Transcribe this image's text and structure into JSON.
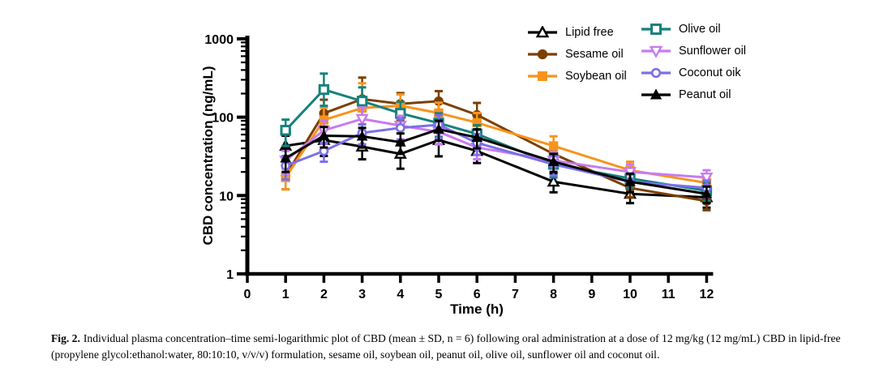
{
  "caption": {
    "label": "Fig. 2.",
    "text": "Individual plasma concentration–time semi-logarithmic plot of CBD (mean ± SD, n = 6) following oral administration at a dose of 12 mg/kg (12 mg/mL) CBD in lipid-free (propylene glycol:ethanol:water, 80:10:10, v/v/v) formulation, sesame oil, soybean oil, peanut oil, olive oil, sunflower oil and coconut oil."
  },
  "chart_data": {
    "type": "line",
    "title": "",
    "xlabel": "Time (h)",
    "ylabel": "CBD concentration (ng/mL)",
    "y_scale": "log",
    "ylim": [
      1,
      1000
    ],
    "y_ticks": [
      1,
      10,
      100,
      1000
    ],
    "x_ticks": [
      0,
      1,
      2,
      3,
      4,
      5,
      6,
      7,
      8,
      9,
      10,
      11,
      12
    ],
    "xlim": [
      0,
      12
    ],
    "grid": false,
    "legend_position": "top-right",
    "error_bars": "SD",
    "x": [
      1,
      2,
      3,
      4,
      5,
      6,
      8,
      10,
      12
    ],
    "series": [
      {
        "name": "Lipid free",
        "color": "#000000",
        "marker": "triangle-up-open",
        "legend_col": 0,
        "values": [
          43,
          51,
          42,
          34,
          51,
          37,
          15,
          10.5,
          9.5
        ],
        "sd": [
          15,
          19,
          13,
          12,
          24,
          11,
          4,
          2.5,
          2.5
        ]
      },
      {
        "name": "Sesame oil",
        "color": "#7B3F00",
        "marker": "circle-filled",
        "legend_col": 0,
        "values": [
          18,
          112,
          170,
          148,
          160,
          107,
          34,
          12.5,
          8.5
        ],
        "sd": [
          6,
          55,
          150,
          55,
          55,
          45,
          10,
          3,
          2
        ]
      },
      {
        "name": "Soybean oil",
        "color": "#F7941D",
        "marker": "square-filled",
        "legend_col": 0,
        "values": [
          17,
          92,
          131,
          140,
          113,
          85,
          43,
          21,
          14.5
        ],
        "sd": [
          5,
          40,
          140,
          55,
          40,
          28,
          14,
          6,
          3.5
        ]
      },
      {
        "name": "Olive oil",
        "color": "#16817C",
        "marker": "square-open",
        "legend_col": 1,
        "values": [
          68,
          225,
          160,
          112,
          84,
          61,
          25,
          16.5,
          11.5
        ],
        "sd": [
          25,
          135,
          80,
          45,
          28,
          18,
          8,
          4,
          3
        ]
      },
      {
        "name": "Sunflower oil",
        "color": "#C87BF0",
        "marker": "triangle-down-open",
        "legend_col": 1,
        "values": [
          28,
          68,
          95,
          78,
          65,
          41,
          28,
          20,
          17
        ],
        "sd": [
          9,
          22,
          38,
          26,
          20,
          12,
          8,
          5,
          4
        ]
      },
      {
        "name": "Coconut oik",
        "color": "#7B6FEA",
        "marker": "circle-open",
        "legend_col": 1,
        "values": [
          24,
          37,
          63,
          73,
          80,
          47,
          25,
          15,
          12.5
        ],
        "sd": [
          8,
          10,
          18,
          22,
          26,
          14,
          7,
          4,
          3
        ]
      },
      {
        "name": "Peanut oil",
        "color": "#000000",
        "marker": "triangle-up-filled",
        "legend_col": 1,
        "values": [
          30,
          58,
          57,
          48,
          70,
          55,
          27,
          15,
          10.5
        ],
        "sd": [
          10,
          17,
          16,
          14,
          20,
          15,
          7,
          4,
          2.5
        ]
      }
    ]
  }
}
